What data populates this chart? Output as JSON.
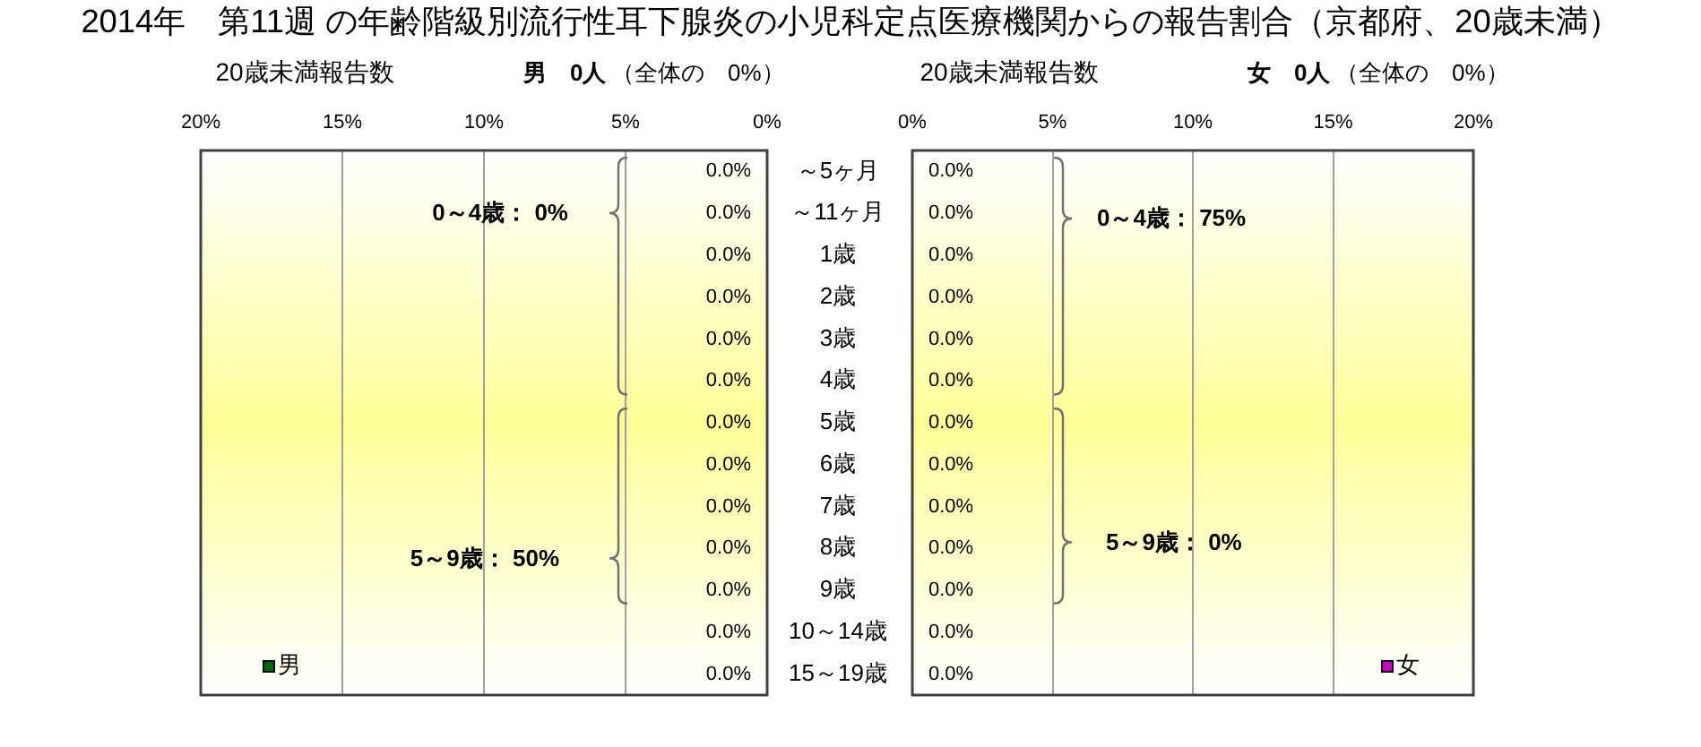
{
  "chart_data": [
    {
      "type": "bar",
      "orientation": "horizontal",
      "title": "2014年　第11週 の年齢階級別流行性耳下腺炎の小児科定点医療機関からの報告割合（京都府、20歳未満）",
      "subtitle": "20歳未満報告数",
      "annotations": [
        "男　0人",
        "（全体の　0%）",
        "0～4歳： 0%",
        "5～9歳： 50%"
      ],
      "categories": [
        "～5ヶ月",
        "～11ヶ月",
        "1歳",
        "2歳",
        "3歳",
        "4歳",
        "5歳",
        "6歳",
        "7歳",
        "8歳",
        "9歳",
        "10～14歳",
        "15～19歳"
      ],
      "series": [
        {
          "name": "男",
          "color": "#006600",
          "values": [
            0,
            0,
            0,
            0,
            0,
            0,
            0,
            0,
            0,
            0,
            0,
            0,
            0
          ],
          "value_labels": [
            "0.0%",
            "0.0%",
            "0.0%",
            "0.0%",
            "0.0%",
            "0.0%",
            "0.0%",
            "0.0%",
            "0.0%",
            "0.0%",
            "0.0%",
            "0.0%",
            "0.0%"
          ]
        }
      ],
      "xlim": [
        20,
        0
      ],
      "xticks": [
        {
          "value": 20,
          "label": "20%"
        },
        {
          "value": 15,
          "label": "15%"
        },
        {
          "value": 10,
          "label": "10%"
        },
        {
          "value": 5,
          "label": "5%"
        },
        {
          "value": 0,
          "label": "0%"
        }
      ],
      "grid": "x",
      "legend": "bottom left"
    },
    {
      "type": "bar",
      "orientation": "horizontal",
      "subtitle": "20歳未満報告数",
      "annotations": [
        "女　0人",
        "（全体の　0%）",
        "0～4歳： 75%",
        "5～9歳： 0%"
      ],
      "categories": [
        null,
        null,
        null,
        null,
        null,
        null,
        null,
        null,
        null,
        null,
        null,
        null,
        null
      ],
      "series": [
        {
          "name": "女",
          "color": "#cc00cc",
          "values": [
            0,
            0,
            0,
            0,
            0,
            0,
            0,
            0,
            0,
            0,
            0,
            0,
            0
          ],
          "value_labels": [
            "0.0%",
            "0.0%",
            "0.0%",
            "0.0%",
            "0.0%",
            "0.0%",
            "0.0%",
            "0.0%",
            "0.0%",
            "0.0%",
            "0.0%",
            "0.0%",
            "0.0%"
          ]
        }
      ],
      "xlim": [
        0,
        20
      ],
      "xticks": [
        {
          "value": 0,
          "label": "0%"
        },
        {
          "value": 5,
          "label": "5%"
        },
        {
          "value": 10,
          "label": "10%"
        },
        {
          "value": 15,
          "label": "15%"
        },
        {
          "value": 20,
          "label": "20%"
        }
      ],
      "grid": "x",
      "legend": "bottom right"
    }
  ]
}
